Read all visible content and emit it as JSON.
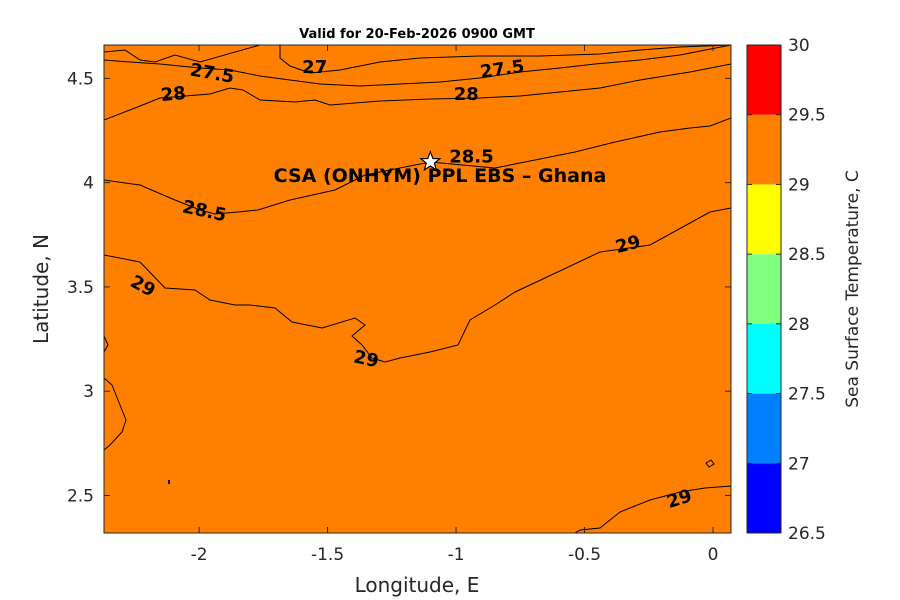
{
  "title": "Valid for 20-Feb-2026 0900 GMT",
  "site_label": "CSA (ONHYM) PPL EBS  – Ghana",
  "site_marker": {
    "lon": -1.1,
    "lat": 4.1,
    "icon": "star-icon"
  },
  "chart_data": {
    "type": "filled-contour",
    "xlabel": "Longitude, E",
    "ylabel": "Latitude, N",
    "xlim": [
      -2.37,
      0.07
    ],
    "ylim": [
      2.32,
      4.66
    ],
    "xticks": [
      -2,
      -1.5,
      -1,
      -0.5,
      0
    ],
    "xtick_labels": [
      "-2",
      "-1.5",
      "-1",
      "-0.5",
      "0"
    ],
    "yticks": [
      2.5,
      3,
      3.5,
      4,
      4.5
    ],
    "ytick_labels": [
      "2.5",
      "3",
      "3.5",
      "4",
      "4.5"
    ],
    "contour_levels": [
      {
        "value": 26.5,
        "color": "#0000ff"
      },
      {
        "value": 27,
        "color": "#0080ff"
      },
      {
        "value": 27.5,
        "color": "#00ffff"
      },
      {
        "value": 28,
        "color": "#80ff80"
      },
      {
        "value": 28.5,
        "color": "#ffff00"
      },
      {
        "value": 29,
        "color": "#ff8000"
      },
      {
        "value": 29.5,
        "color": "#ff0000"
      }
    ],
    "contour_labels": [
      {
        "text": "27",
        "lon": -1.55,
        "lat": 4.55,
        "angle": 0
      },
      {
        "text": "27.5",
        "lon": -1.95,
        "lat": 4.52,
        "angle": 10
      },
      {
        "text": "27.5",
        "lon": -0.82,
        "lat": 4.54,
        "angle": -8
      },
      {
        "text": "28",
        "lon": -2.1,
        "lat": 4.42,
        "angle": -5
      },
      {
        "text": "28",
        "lon": -0.96,
        "lat": 4.42,
        "angle": 0
      },
      {
        "text": "28.5",
        "lon": -0.94,
        "lat": 4.12,
        "angle": 0
      },
      {
        "text": "28.5",
        "lon": -1.98,
        "lat": 3.86,
        "angle": 12
      },
      {
        "text": "29",
        "lon": -2.22,
        "lat": 3.5,
        "angle": 28
      },
      {
        "text": "29",
        "lon": -0.33,
        "lat": 3.7,
        "angle": -15
      },
      {
        "text": "29",
        "lon": -1.35,
        "lat": 3.15,
        "angle": 12
      },
      {
        "text": "29",
        "lon": -0.13,
        "lat": 2.48,
        "angle": -18
      }
    ],
    "colorbar": {
      "label": "Sea Surface Temperature, C",
      "range": [
        26.5,
        30
      ],
      "bands": [
        {
          "from": 26.5,
          "to": 27,
          "color": "#0000ff"
        },
        {
          "from": 27,
          "to": 27.5,
          "color": "#0080ff"
        },
        {
          "from": 27.5,
          "to": 28,
          "color": "#00ffff"
        },
        {
          "from": 28,
          "to": 28.5,
          "color": "#80ff80"
        },
        {
          "from": 28.5,
          "to": 29,
          "color": "#ffff00"
        },
        {
          "from": 29,
          "to": 29.5,
          "color": "#ff8000"
        },
        {
          "from": 29.5,
          "to": 30,
          "color": "#ff0000"
        }
      ],
      "ticks": [
        26.5,
        27,
        27.5,
        28,
        28.5,
        29,
        29.5,
        30
      ],
      "tick_labels": [
        "26.5",
        "27",
        "27.5",
        "28",
        "28.5",
        "29",
        "29.5",
        "30"
      ]
    }
  }
}
